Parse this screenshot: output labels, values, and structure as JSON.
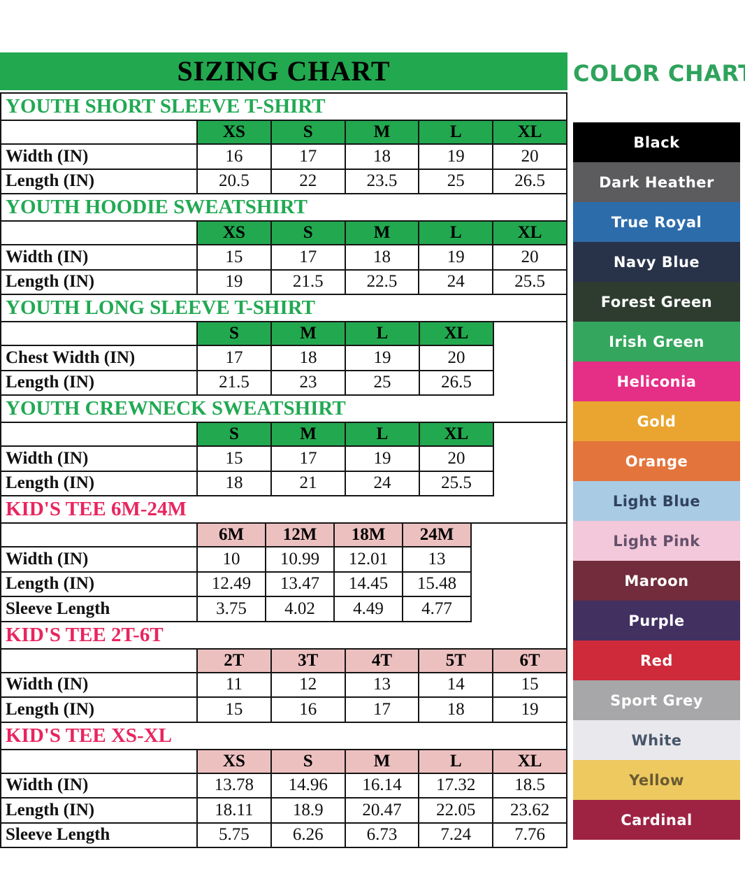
{
  "sizing_chart": {
    "title": "SIZING CHART",
    "tables": [
      {
        "title": "YOUTH SHORT SLEEVE T-SHIRT",
        "theme": "green",
        "sizes": [
          "XS",
          "S",
          "M",
          "L",
          "XL"
        ],
        "rows": [
          {
            "label": "Width (IN)",
            "values": [
              "16",
              "17",
              "18",
              "19",
              "20"
            ]
          },
          {
            "label": "Length (IN)",
            "values": [
              "20.5",
              "22",
              "23.5",
              "25",
              "26.5"
            ]
          }
        ]
      },
      {
        "title": "YOUTH HOODIE SWEATSHIRT",
        "theme": "green",
        "sizes": [
          "XS",
          "S",
          "M",
          "L",
          "XL"
        ],
        "rows": [
          {
            "label": "Width (IN)",
            "values": [
              "15",
              "17",
              "18",
              "19",
              "20"
            ]
          },
          {
            "label": "Length (IN)",
            "values": [
              "19",
              "21.5",
              "22.5",
              "24",
              "25.5"
            ]
          }
        ]
      },
      {
        "title": "YOUTH LONG SLEEVE T-SHIRT",
        "theme": "green",
        "sizes": [
          "S",
          "M",
          "L",
          "XL"
        ],
        "rows": [
          {
            "label": "Chest Width (IN)",
            "values": [
              "17",
              "18",
              "19",
              "20"
            ]
          },
          {
            "label": "Length (IN)",
            "values": [
              "21.5",
              "23",
              "25",
              "26.5"
            ]
          }
        ]
      },
      {
        "title": "YOUTH CREWNECK SWEATSHIRT",
        "theme": "green",
        "sizes": [
          "S",
          "M",
          "L",
          "XL"
        ],
        "rows": [
          {
            "label": "Width (IN)",
            "values": [
              "15",
              "17",
              "19",
              "20"
            ]
          },
          {
            "label": "Length (IN)",
            "values": [
              "18",
              "21",
              "24",
              "25.5"
            ]
          }
        ]
      },
      {
        "title": "KID'S TEE 6M-24M",
        "theme": "pink",
        "sizes": [
          "6M",
          "12M",
          "18M",
          "24M"
        ],
        "rows": [
          {
            "label": "Width (IN)",
            "values": [
              "10",
              "10.99",
              "12.01",
              "13"
            ]
          },
          {
            "label": "Length (IN)",
            "values": [
              "12.49",
              "13.47",
              "14.45",
              "15.48"
            ]
          },
          {
            "label": "Sleeve Length",
            "values": [
              "3.75",
              "4.02",
              "4.49",
              "4.77"
            ]
          }
        ]
      },
      {
        "title": "KID'S TEE 2T-6T",
        "theme": "pink",
        "sizes": [
          "2T",
          "3T",
          "4T",
          "5T",
          "6T"
        ],
        "rows": [
          {
            "label": "Width (IN)",
            "values": [
              "11",
              "12",
              "13",
              "14",
              "15"
            ]
          },
          {
            "label": "Length (IN)",
            "values": [
              "15",
              "16",
              "17",
              "18",
              "19"
            ]
          }
        ]
      },
      {
        "title": "KID'S TEE XS-XL",
        "theme": "pink",
        "sizes": [
          "XS",
          "S",
          "M",
          "L",
          "XL"
        ],
        "rows": [
          {
            "label": "Width (IN)",
            "values": [
              "13.78",
              "14.96",
              "16.14",
              "17.32",
              "18.5"
            ]
          },
          {
            "label": "Length (IN)",
            "values": [
              "18.11",
              "18.9",
              "20.47",
              "22.05",
              "23.62"
            ]
          },
          {
            "label": "Sleeve Length",
            "values": [
              "5.75",
              "6.26",
              "6.73",
              "7.24",
              "7.76"
            ]
          }
        ]
      }
    ]
  },
  "color_chart": {
    "title": "COLOR CHART",
    "title_color": "#2ea35b",
    "colors": [
      {
        "name": "Black",
        "bg": "#000000",
        "text": "#ffffff"
      },
      {
        "name": "Dark Heather",
        "bg": "#5c5c5e",
        "text": "#ffffff"
      },
      {
        "name": "True Royal",
        "bg": "#2d6cab",
        "text": "#ffffff"
      },
      {
        "name": "Navy Blue",
        "bg": "#28334a",
        "text": "#ffffff"
      },
      {
        "name": "Forest Green",
        "bg": "#2e3c30",
        "text": "#ffffff"
      },
      {
        "name": "Irish Green",
        "bg": "#34a65d",
        "text": "#ffffff"
      },
      {
        "name": "Heliconia",
        "bg": "#e52e86",
        "text": "#ffffff"
      },
      {
        "name": "Gold",
        "bg": "#e9a52f",
        "text": "#ffffff"
      },
      {
        "name": "Orange",
        "bg": "#e3743c",
        "text": "#ffffff"
      },
      {
        "name": "Light Blue",
        "bg": "#a9cbe4",
        "text": "#31425c"
      },
      {
        "name": "Light Pink",
        "bg": "#f3c8da",
        "text": "#64506b"
      },
      {
        "name": "Maroon",
        "bg": "#722c3b",
        "text": "#ffffff"
      },
      {
        "name": "Purple",
        "bg": "#423061",
        "text": "#ffffff"
      },
      {
        "name": "Red",
        "bg": "#ce2a3a",
        "text": "#ffffff"
      },
      {
        "name": "Sport Grey",
        "bg": "#a7a6a8",
        "text": "#ffffff"
      },
      {
        "name": "White",
        "bg": "#e9e8ec",
        "text": "#475569"
      },
      {
        "name": "Yellow",
        "bg": "#edc95f",
        "text": "#6a5a33"
      },
      {
        "name": "Cardinal",
        "bg": "#9e2343",
        "text": "#ffffff"
      }
    ]
  },
  "theme": {
    "green_header_bg": "#22a84f",
    "green_title_text": "#21a953",
    "pink_header_bg": "#edc0c0",
    "pink_title_text": "#e8255f",
    "header_text": "#000000",
    "border": "#151515"
  }
}
